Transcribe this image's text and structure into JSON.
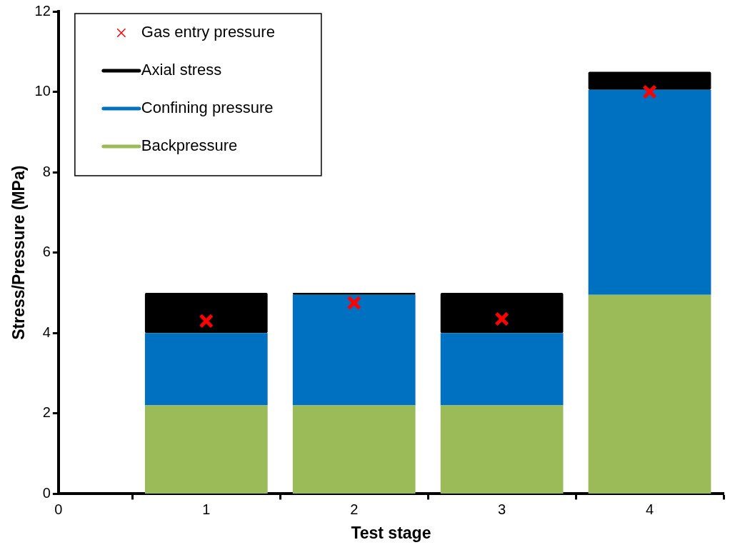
{
  "chart_data": {
    "type": "bar",
    "stacked": true,
    "xlabel": "Test stage",
    "ylabel": "Stress/Pressure (MPa)",
    "x": [
      1,
      2,
      3,
      4
    ],
    "xlim": [
      0,
      4.5
    ],
    "xticks": [
      0,
      1,
      2,
      3,
      4
    ],
    "ylim": [
      0,
      12
    ],
    "yticks": [
      0,
      2,
      4,
      6,
      8,
      10,
      12
    ],
    "grid": false,
    "legend": "top left",
    "marker": "cross",
    "series": [
      {
        "name": "Gas entry pressure",
        "type": "scatter",
        "color": "#ff0000",
        "values": [
          4.3,
          4.75,
          4.35,
          10.0
        ]
      },
      {
        "name": "Backpressure",
        "color": "#9bbb59",
        "values": [
          2.2,
          2.2,
          2.2,
          4.95
        ]
      },
      {
        "name": "Confining pressure",
        "color": "#0070c0",
        "values": [
          1.8,
          2.75,
          1.8,
          5.1
        ]
      },
      {
        "name": "Axial stress",
        "color": "#000000",
        "values": [
          1.0,
          0.05,
          1.0,
          0.45
        ]
      }
    ]
  }
}
